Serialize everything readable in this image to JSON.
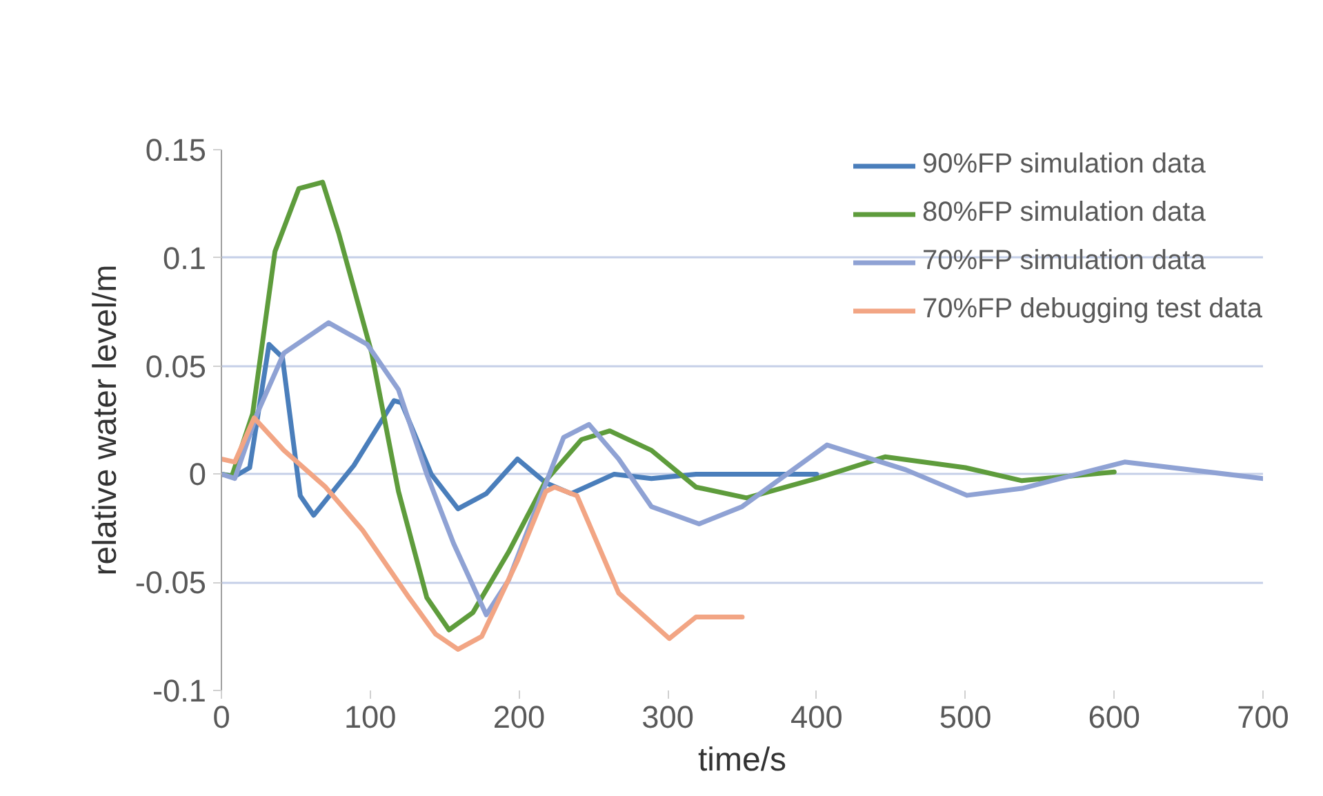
{
  "chart_data": {
    "type": "line",
    "xlabel": "time/s",
    "ylabel": "relative water level/m",
    "xlim": [
      0,
      700
    ],
    "ylim": [
      -0.1,
      0.15
    ],
    "xticks": [
      0,
      100,
      200,
      300,
      400,
      500,
      600,
      700
    ],
    "yticks": [
      -0.1,
      -0.05,
      0,
      0.05,
      0.1,
      0.15
    ],
    "grid": "y",
    "legend": "top right",
    "marker": "none",
    "line_style": "solid",
    "series": [
      {
        "name": "90%FP simulation data",
        "color": "#4a7ebb",
        "x": [
          0,
          9,
          19,
          32,
          41,
          53,
          62,
          89,
          116,
          121,
          141,
          159,
          178,
          199,
          218,
          235,
          264,
          289,
          319,
          360,
          400
        ],
        "values": [
          0,
          -0.001,
          0.003,
          0.06,
          0.054,
          -0.01,
          -0.019,
          0.004,
          0.034,
          0.033,
          0,
          -0.016,
          -0.009,
          0.007,
          -0.004,
          -0.009,
          0,
          -0.002,
          0,
          0,
          0
        ]
      },
      {
        "name": "80%FP simulation data",
        "color": "#5e9c3c",
        "x": [
          0,
          7,
          21,
          36,
          52,
          68,
          79,
          101,
          119,
          138,
          153,
          169,
          193,
          218,
          242,
          261,
          289,
          319,
          353,
          400,
          446,
          500,
          538,
          600
        ],
        "values": [
          0,
          -0.001,
          0.028,
          0.103,
          0.132,
          0.135,
          0.111,
          0.056,
          -0.008,
          -0.057,
          -0.072,
          -0.064,
          -0.036,
          -0.003,
          0.016,
          0.02,
          0.011,
          -0.006,
          -0.011,
          -0.002,
          0.008,
          0.003,
          -0.003,
          0.001
        ]
      },
      {
        "name": "70%FP simulation data",
        "color": "#8fa2d4",
        "x": [
          0,
          9,
          24,
          42,
          72,
          98,
          119,
          138,
          156,
          178,
          193,
          212,
          230,
          247,
          267,
          289,
          321,
          350,
          407,
          460,
          501,
          538,
          607,
          700
        ],
        "values": [
          0,
          -0.002,
          0.028,
          0.056,
          0.07,
          0.06,
          0.039,
          0,
          -0.032,
          -0.065,
          -0.049,
          -0.015,
          0.017,
          0.023,
          0.007,
          -0.015,
          -0.023,
          -0.015,
          0.0135,
          0.002,
          -0.0098,
          -0.0066,
          0.0056,
          -0.002
        ]
      },
      {
        "name": "70%FP debugging test data",
        "color": "#f2a584",
        "x": [
          0,
          9,
          22,
          42,
          70,
          95,
          126,
          144,
          159,
          175,
          199,
          218,
          224,
          239,
          267,
          301,
          319,
          350
        ],
        "values": [
          0.007,
          0.0056,
          0.026,
          0.011,
          -0.006,
          -0.026,
          -0.057,
          -0.074,
          -0.081,
          -0.075,
          -0.04,
          -0.008,
          -0.006,
          -0.01,
          -0.055,
          -0.076,
          -0.066,
          -0.066
        ]
      }
    ]
  }
}
